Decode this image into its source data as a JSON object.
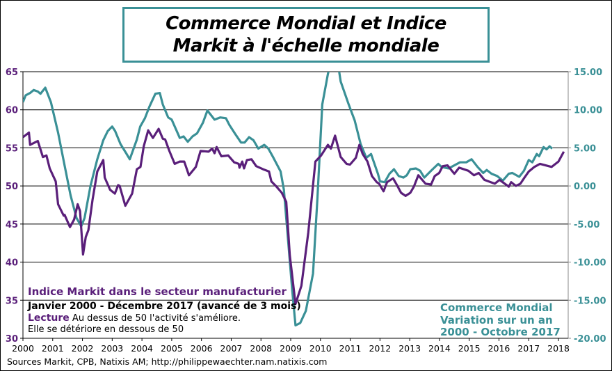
{
  "chart_data": {
    "type": "line",
    "title": "Commerce Mondial et Indice Markit à l'échelle mondiale",
    "title_lines": [
      "Commerce Mondial et Indice",
      "Markit à l'échelle mondiale"
    ],
    "x_ticks": [
      "2000",
      "2001",
      "2002",
      "2003",
      "2004",
      "2005",
      "2006",
      "2007",
      "2008",
      "2009",
      "2010",
      "2011",
      "2012",
      "2013",
      "2014",
      "2015",
      "2016",
      "2017",
      "2018"
    ],
    "xlim": [
      2000,
      2018.3
    ],
    "y_left": {
      "ticks": [
        "30",
        "35",
        "40",
        "45",
        "50",
        "55",
        "60",
        "65"
      ],
      "ylim": [
        30,
        65
      ]
    },
    "y_right": {
      "ticks": [
        "-20.00",
        "-15.00",
        "-10.00",
        "-5.00",
        "0.00",
        "5.00",
        "10.00",
        "15.00"
      ],
      "ylim": [
        -20,
        15
      ]
    },
    "grid": true,
    "colors": {
      "markit": "#5a1f7a",
      "commerce": "#3a9096"
    },
    "series": [
      {
        "name": "Indice Markit dans le secteur manufacturier",
        "axis": "left",
        "points": [
          [
            2000.0,
            56.4
          ],
          [
            2000.2,
            57.0
          ],
          [
            2000.24,
            55.4
          ],
          [
            2000.5,
            55.9
          ],
          [
            2000.67,
            53.8
          ],
          [
            2000.79,
            54.0
          ],
          [
            2000.9,
            52.3
          ],
          [
            2001.1,
            50.6
          ],
          [
            2001.18,
            47.6
          ],
          [
            2001.37,
            46.1
          ],
          [
            2001.4,
            46.2
          ],
          [
            2001.58,
            44.6
          ],
          [
            2001.72,
            45.6
          ],
          [
            2001.84,
            47.6
          ],
          [
            2001.92,
            46.7
          ],
          [
            2002.02,
            41.0
          ],
          [
            2002.11,
            43.3
          ],
          [
            2002.2,
            44.2
          ],
          [
            2002.34,
            48.2
          ],
          [
            2002.5,
            51.9
          ],
          [
            2002.7,
            53.4
          ],
          [
            2002.75,
            51.1
          ],
          [
            2002.93,
            49.5
          ],
          [
            2003.09,
            49.0
          ],
          [
            2003.2,
            50.1
          ],
          [
            2003.25,
            50.0
          ],
          [
            2003.44,
            47.4
          ],
          [
            2003.67,
            49.0
          ],
          [
            2003.83,
            52.2
          ],
          [
            2003.95,
            52.5
          ],
          [
            2004.06,
            55.2
          ],
          [
            2004.21,
            57.3
          ],
          [
            2004.37,
            56.3
          ],
          [
            2004.56,
            57.5
          ],
          [
            2004.7,
            56.2
          ],
          [
            2004.78,
            56.1
          ],
          [
            2004.92,
            54.6
          ],
          [
            2005.1,
            52.9
          ],
          [
            2005.27,
            53.2
          ],
          [
            2005.42,
            53.2
          ],
          [
            2005.58,
            51.4
          ],
          [
            2005.77,
            52.3
          ],
          [
            2005.81,
            52.5
          ],
          [
            2005.97,
            54.6
          ],
          [
            2006.24,
            54.5
          ],
          [
            2006.36,
            54.9
          ],
          [
            2006.44,
            54.3
          ],
          [
            2006.51,
            55.1
          ],
          [
            2006.67,
            53.9
          ],
          [
            2006.9,
            54.0
          ],
          [
            2007.1,
            53.1
          ],
          [
            2007.25,
            52.9
          ],
          [
            2007.28,
            52.4
          ],
          [
            2007.37,
            53.2
          ],
          [
            2007.43,
            52.3
          ],
          [
            2007.53,
            53.4
          ],
          [
            2007.68,
            53.5
          ],
          [
            2007.84,
            52.6
          ],
          [
            2008.07,
            52.2
          ],
          [
            2008.27,
            51.9
          ],
          [
            2008.35,
            50.6
          ],
          [
            2008.5,
            50.0
          ],
          [
            2008.7,
            49.1
          ],
          [
            2008.85,
            47.9
          ],
          [
            2008.97,
            40.9
          ],
          [
            2009.16,
            34.5
          ],
          [
            2009.36,
            36.9
          ],
          [
            2009.59,
            43.9
          ],
          [
            2009.83,
            53.2
          ],
          [
            2010.02,
            54.0
          ],
          [
            2010.25,
            55.4
          ],
          [
            2010.35,
            54.9
          ],
          [
            2010.49,
            56.6
          ],
          [
            2010.68,
            53.8
          ],
          [
            2010.88,
            52.9
          ],
          [
            2010.99,
            52.8
          ],
          [
            2011.19,
            53.7
          ],
          [
            2011.31,
            55.4
          ],
          [
            2011.42,
            54.2
          ],
          [
            2011.58,
            53.2
          ],
          [
            2011.73,
            51.3
          ],
          [
            2011.89,
            50.5
          ],
          [
            2011.97,
            50.3
          ],
          [
            2012.12,
            49.3
          ],
          [
            2012.24,
            50.5
          ],
          [
            2012.44,
            51.0
          ],
          [
            2012.56,
            50.2
          ],
          [
            2012.71,
            49.1
          ],
          [
            2012.86,
            48.7
          ],
          [
            2013.02,
            49.1
          ],
          [
            2013.14,
            49.9
          ],
          [
            2013.29,
            51.4
          ],
          [
            2013.53,
            50.3
          ],
          [
            2013.72,
            50.2
          ],
          [
            2013.84,
            51.3
          ],
          [
            2013.99,
            51.7
          ],
          [
            2014.11,
            52.6
          ],
          [
            2014.27,
            52.7
          ],
          [
            2014.5,
            51.6
          ],
          [
            2014.66,
            52.4
          ],
          [
            2014.97,
            52.0
          ],
          [
            2015.16,
            51.4
          ],
          [
            2015.32,
            51.7
          ],
          [
            2015.51,
            50.8
          ],
          [
            2015.86,
            50.3
          ],
          [
            2016.02,
            50.8
          ],
          [
            2016.33,
            49.9
          ],
          [
            2016.41,
            50.5
          ],
          [
            2016.57,
            50.0
          ],
          [
            2016.72,
            50.3
          ],
          [
            2016.84,
            51.0
          ],
          [
            2017.0,
            51.9
          ],
          [
            2017.19,
            52.5
          ],
          [
            2017.38,
            52.9
          ],
          [
            2017.77,
            52.5
          ],
          [
            2018.0,
            53.2
          ],
          [
            2018.18,
            54.5
          ]
        ]
      },
      {
        "name": "Commerce Mondial Variation sur un an",
        "axis": "right",
        "points": [
          [
            2000.0,
            11.0
          ],
          [
            2000.09,
            11.9
          ],
          [
            2000.24,
            12.2
          ],
          [
            2000.36,
            12.6
          ],
          [
            2000.5,
            12.4
          ],
          [
            2000.59,
            12.1
          ],
          [
            2000.75,
            12.9
          ],
          [
            2000.94,
            11.0
          ],
          [
            2001.18,
            7.0
          ],
          [
            2001.41,
            2.5
          ],
          [
            2001.6,
            -1.2
          ],
          [
            2001.8,
            -4.2
          ],
          [
            2001.96,
            -5.3
          ],
          [
            2002.07,
            -4.2
          ],
          [
            2002.27,
            0.0
          ],
          [
            2002.5,
            3.5
          ],
          [
            2002.7,
            6.0
          ],
          [
            2002.85,
            7.2
          ],
          [
            2003.0,
            7.8
          ],
          [
            2003.1,
            7.2
          ],
          [
            2003.28,
            5.5
          ],
          [
            2003.47,
            4.3
          ],
          [
            2003.59,
            3.5
          ],
          [
            2003.83,
            6.1
          ],
          [
            2003.94,
            7.8
          ],
          [
            2004.1,
            8.9
          ],
          [
            2004.25,
            10.4
          ],
          [
            2004.45,
            12.1
          ],
          [
            2004.6,
            12.2
          ],
          [
            2004.7,
            10.7
          ],
          [
            2004.88,
            9.0
          ],
          [
            2005.0,
            8.7
          ],
          [
            2005.27,
            6.3
          ],
          [
            2005.4,
            6.5
          ],
          [
            2005.54,
            5.8
          ],
          [
            2005.7,
            6.5
          ],
          [
            2005.85,
            6.9
          ],
          [
            2006.05,
            8.3
          ],
          [
            2006.2,
            9.9
          ],
          [
            2006.44,
            8.7
          ],
          [
            2006.63,
            9.0
          ],
          [
            2006.82,
            8.9
          ],
          [
            2006.94,
            8.0
          ],
          [
            2007.14,
            6.8
          ],
          [
            2007.33,
            5.7
          ],
          [
            2007.45,
            5.7
          ],
          [
            2007.6,
            6.4
          ],
          [
            2007.75,
            6.0
          ],
          [
            2007.91,
            4.9
          ],
          [
            2008.11,
            5.4
          ],
          [
            2008.25,
            4.9
          ],
          [
            2008.42,
            3.7
          ],
          [
            2008.66,
            1.9
          ],
          [
            2008.77,
            -0.5
          ],
          [
            2008.89,
            -6.1
          ],
          [
            2009.05,
            -13.7
          ],
          [
            2009.16,
            -18.3
          ],
          [
            2009.32,
            -18.0
          ],
          [
            2009.51,
            -16.4
          ],
          [
            2009.75,
            -11.5
          ],
          [
            2009.9,
            -1.5
          ],
          [
            2010.06,
            10.7
          ],
          [
            2010.25,
            14.7
          ],
          [
            2010.4,
            17.0
          ],
          [
            2010.55,
            17.0
          ],
          [
            2010.68,
            13.7
          ],
          [
            2010.95,
            10.7
          ],
          [
            2011.15,
            8.6
          ],
          [
            2011.35,
            5.5
          ],
          [
            2011.54,
            3.7
          ],
          [
            2011.7,
            4.2
          ],
          [
            2011.93,
            1.6
          ],
          [
            2012.0,
            0.6
          ],
          [
            2012.16,
            0.5
          ],
          [
            2012.32,
            1.6
          ],
          [
            2012.47,
            2.2
          ],
          [
            2012.63,
            1.3
          ],
          [
            2012.79,
            1.1
          ],
          [
            2012.9,
            1.4
          ],
          [
            2013.02,
            2.2
          ],
          [
            2013.21,
            2.3
          ],
          [
            2013.35,
            2.0
          ],
          [
            2013.49,
            1.1
          ],
          [
            2013.72,
            2.0
          ],
          [
            2013.96,
            2.9
          ],
          [
            2014.07,
            2.5
          ],
          [
            2014.3,
            2.3
          ],
          [
            2014.45,
            2.6
          ],
          [
            2014.69,
            3.1
          ],
          [
            2014.9,
            3.1
          ],
          [
            2015.08,
            3.5
          ],
          [
            2015.28,
            2.5
          ],
          [
            2015.47,
            1.7
          ],
          [
            2015.59,
            2.1
          ],
          [
            2015.75,
            1.6
          ],
          [
            2015.94,
            1.3
          ],
          [
            2016.13,
            0.7
          ],
          [
            2016.33,
            1.6
          ],
          [
            2016.45,
            1.7
          ],
          [
            2016.68,
            1.2
          ],
          [
            2016.84,
            2.0
          ],
          [
            2017.0,
            3.4
          ],
          [
            2017.12,
            3.1
          ],
          [
            2017.27,
            4.2
          ],
          [
            2017.35,
            3.9
          ],
          [
            2017.5,
            5.1
          ],
          [
            2017.6,
            4.8
          ],
          [
            2017.7,
            5.2
          ],
          [
            2017.79,
            4.9
          ]
        ]
      }
    ]
  },
  "annotations": {
    "markit_label": "Indice Markit dans le secteur manufacturier",
    "period": "Janvier 2000 - Décembre 2017 (avancé de 3 mois)",
    "lecture_label": "Lecture",
    "lecture_text": "Au dessus de 50 l'activité s'améliore.",
    "lecture_text2": "Elle se détériore en dessous de 50",
    "commerce_line1": "Commerce Mondial",
    "commerce_line2": "Variation sur un an",
    "commerce_line3": "2000 - Octobre 2017"
  },
  "footer": {
    "sources": "Sources Markit, CPB, Natixis AM; http://philippewaechter.nam.natixis.com"
  }
}
